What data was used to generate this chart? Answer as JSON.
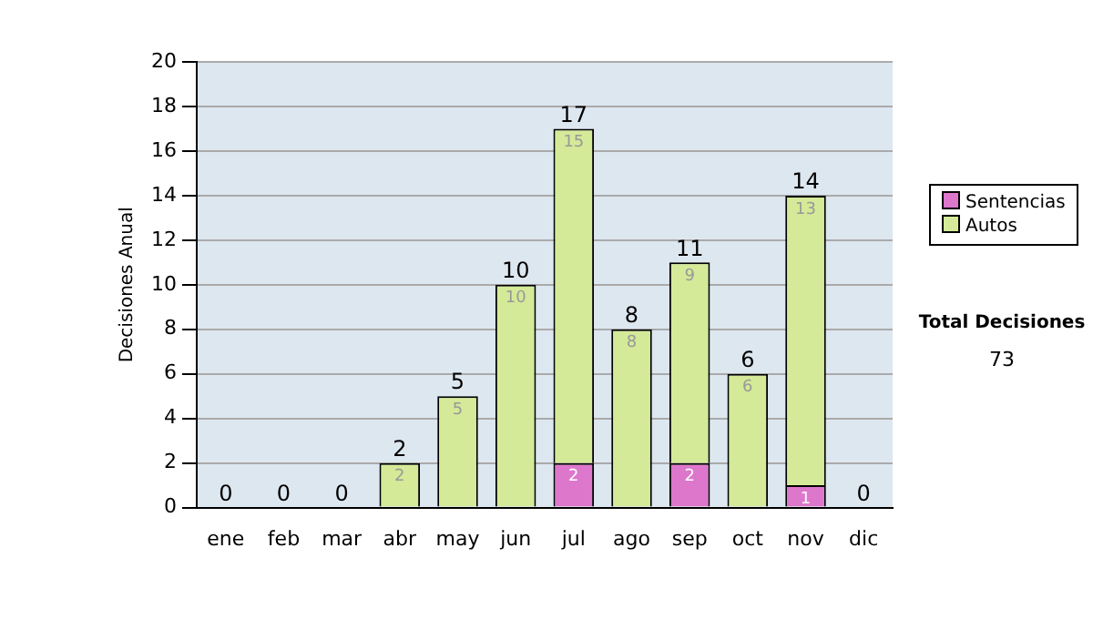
{
  "chart_data": {
    "type": "bar",
    "stacked": true,
    "ylabel": "Decisiones Anual",
    "categories": [
      "ene",
      "feb",
      "mar",
      "abr",
      "may",
      "jun",
      "jul",
      "ago",
      "sep",
      "oct",
      "nov",
      "dic"
    ],
    "series": [
      {
        "name": "Sentencias",
        "color": "#dd77cc",
        "values": [
          0,
          0,
          0,
          0,
          0,
          0,
          2,
          0,
          2,
          0,
          1,
          0
        ],
        "value_labels": [
          null,
          null,
          null,
          null,
          null,
          null,
          "2",
          null,
          "2",
          null,
          "1",
          null
        ]
      },
      {
        "name": "Autos",
        "color": "#d4ea98",
        "values": [
          0,
          0,
          0,
          2,
          5,
          10,
          15,
          8,
          9,
          6,
          13,
          0
        ],
        "value_labels": [
          null,
          null,
          null,
          "2",
          "5",
          "10",
          "15",
          "8",
          "9",
          "6",
          "13",
          null
        ]
      }
    ],
    "totals": [
      "0",
      "0",
      "0",
      "2",
      "5",
      "10",
      "17",
      "8",
      "11",
      "6",
      "14",
      "0"
    ],
    "ylim": [
      0,
      20
    ],
    "yticks": [
      0,
      2,
      4,
      6,
      8,
      10,
      12,
      14,
      16,
      18,
      20
    ],
    "grid": "y",
    "legend": "right",
    "annotations": [
      "Total Decisiones",
      "73"
    ]
  }
}
